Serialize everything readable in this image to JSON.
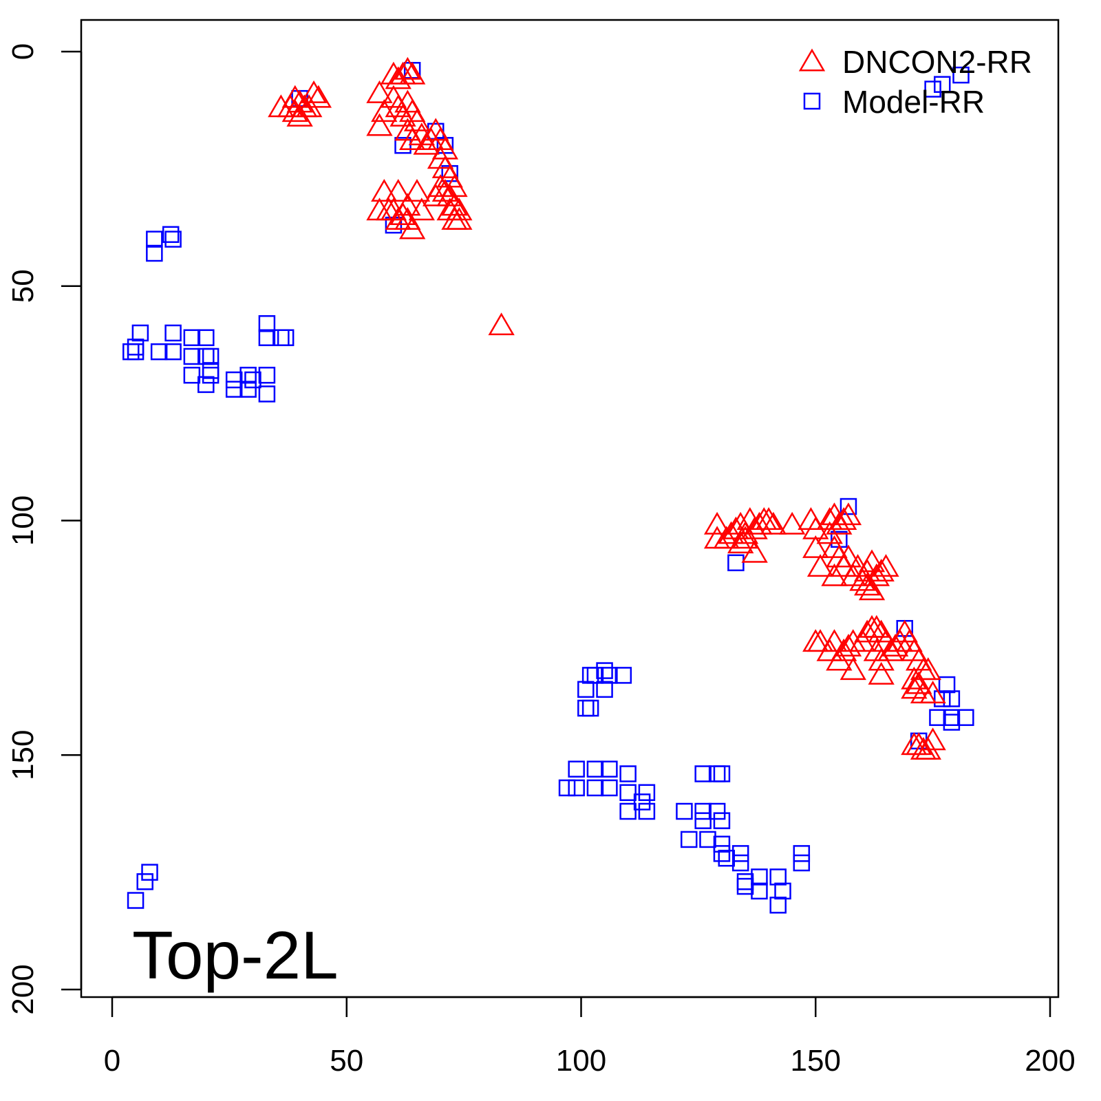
{
  "chart_data": {
    "type": "scatter",
    "title": "",
    "annotation": "Top-2L",
    "xlabel": "",
    "ylabel": "",
    "xlim": [
      0,
      200
    ],
    "ylim": [
      0,
      200
    ],
    "y_inverted": true,
    "xticks": [
      "0",
      "50",
      "100",
      "150",
      "200"
    ],
    "yticks": [
      "0",
      "50",
      "100",
      "150",
      "200"
    ],
    "grid": false,
    "legend_position": "top-right",
    "series": [
      {
        "name": "DNCON2-RR",
        "marker": "triangle",
        "color": "#ff0000",
        "points": [
          [
            36,
            12
          ],
          [
            39,
            10
          ],
          [
            40,
            11
          ],
          [
            41,
            12
          ],
          [
            42,
            12
          ],
          [
            43,
            9
          ],
          [
            44,
            10
          ],
          [
            40,
            14
          ],
          [
            39,
            13
          ],
          [
            38,
            12
          ],
          [
            60,
            5
          ],
          [
            61,
            6
          ],
          [
            62,
            5
          ],
          [
            63,
            4
          ],
          [
            64,
            5
          ],
          [
            57,
            9
          ],
          [
            58,
            13
          ],
          [
            57,
            16
          ],
          [
            60,
            10
          ],
          [
            61,
            12
          ],
          [
            62,
            14
          ],
          [
            63,
            11
          ],
          [
            64,
            13
          ],
          [
            65,
            15
          ],
          [
            63,
            17
          ],
          [
            64,
            19
          ],
          [
            66,
            18
          ],
          [
            67,
            20
          ],
          [
            68,
            19
          ],
          [
            69,
            17
          ],
          [
            70,
            19
          ],
          [
            71,
            21
          ],
          [
            70,
            23
          ],
          [
            71,
            25
          ],
          [
            72,
            27
          ],
          [
            73,
            29
          ],
          [
            72,
            31
          ],
          [
            73,
            33
          ],
          [
            74,
            34
          ],
          [
            71,
            30
          ],
          [
            70,
            29
          ],
          [
            69,
            31
          ],
          [
            72,
            34
          ],
          [
            73,
            36
          ],
          [
            74,
            36
          ],
          [
            57,
            34
          ],
          [
            58,
            30
          ],
          [
            61,
            30
          ],
          [
            60,
            34
          ],
          [
            61,
            36
          ],
          [
            62,
            35
          ],
          [
            63,
            33
          ],
          [
            64,
            38
          ],
          [
            65,
            30
          ],
          [
            66,
            34
          ],
          [
            63,
            36
          ],
          [
            59,
            34
          ],
          [
            83,
            58.5
          ],
          [
            129,
            101
          ],
          [
            129,
            104
          ],
          [
            131,
            104
          ],
          [
            132,
            103
          ],
          [
            133,
            102
          ],
          [
            134,
            101
          ],
          [
            135,
            103
          ],
          [
            136,
            100
          ],
          [
            137,
            102
          ],
          [
            138,
            101
          ],
          [
            139,
            100
          ],
          [
            140,
            100
          ],
          [
            141,
            101
          ],
          [
            134,
            105
          ],
          [
            137,
            107
          ],
          [
            135,
            104
          ],
          [
            145,
            101
          ],
          [
            149,
            100
          ],
          [
            150,
            102
          ],
          [
            150,
            106
          ],
          [
            151,
            110
          ],
          [
            153,
            100
          ],
          [
            154,
            99
          ],
          [
            155,
            101
          ],
          [
            156,
            100
          ],
          [
            157,
            99
          ],
          [
            153,
            103
          ],
          [
            154,
            106
          ],
          [
            155,
            108
          ],
          [
            154,
            112
          ],
          [
            156,
            110
          ],
          [
            157,
            108
          ],
          [
            158,
            112
          ],
          [
            159,
            110
          ],
          [
            160,
            113
          ],
          [
            161,
            111
          ],
          [
            162,
            109
          ],
          [
            163,
            112
          ],
          [
            164,
            111
          ],
          [
            165,
            110
          ],
          [
            161,
            114
          ],
          [
            162,
            115
          ],
          [
            150,
            126
          ],
          [
            151,
            126
          ],
          [
            153,
            128
          ],
          [
            154,
            126
          ],
          [
            156,
            128
          ],
          [
            155,
            130
          ],
          [
            157,
            127
          ],
          [
            158,
            126
          ],
          [
            160,
            126
          ],
          [
            161,
            124
          ],
          [
            162,
            123
          ],
          [
            163,
            123
          ],
          [
            164,
            124
          ],
          [
            165,
            126
          ],
          [
            163,
            128
          ],
          [
            164,
            130
          ],
          [
            166,
            128
          ],
          [
            167,
            127
          ],
          [
            168,
            126
          ],
          [
            169,
            124
          ],
          [
            170,
            126
          ],
          [
            171,
            128
          ],
          [
            172,
            130
          ],
          [
            173,
            132
          ],
          [
            174,
            132
          ],
          [
            171,
            134
          ],
          [
            172,
            135
          ],
          [
            158,
            132
          ],
          [
            164,
            133
          ],
          [
            171,
            136
          ],
          [
            173,
            137
          ],
          [
            175,
            137
          ],
          [
            171,
            148
          ],
          [
            172,
            148
          ],
          [
            173,
            149
          ],
          [
            174,
            149
          ],
          [
            175,
            147
          ]
        ]
      },
      {
        "name": "Model-RR",
        "marker": "square",
        "color": "#0000ff",
        "points": [
          [
            5,
            181
          ],
          [
            7,
            177
          ],
          [
            8,
            175
          ],
          [
            9,
            40
          ],
          [
            9,
            43
          ],
          [
            12.5,
            39
          ],
          [
            13,
            40
          ],
          [
            4,
            64
          ],
          [
            5,
            63
          ],
          [
            6,
            60
          ],
          [
            5,
            64
          ],
          [
            10,
            64
          ],
          [
            13,
            60
          ],
          [
            13,
            64
          ],
          [
            17,
            61
          ],
          [
            17,
            65
          ],
          [
            17,
            69
          ],
          [
            20,
            61
          ],
          [
            20,
            65
          ],
          [
            20,
            71
          ],
          [
            21,
            65
          ],
          [
            21,
            68
          ],
          [
            21,
            69
          ],
          [
            26,
            70
          ],
          [
            26,
            72
          ],
          [
            29,
            69
          ],
          [
            29,
            72
          ],
          [
            30,
            70
          ],
          [
            33,
            69
          ],
          [
            33,
            73
          ],
          [
            33,
            58
          ],
          [
            33,
            61
          ],
          [
            36,
            61
          ],
          [
            37,
            61
          ],
          [
            175,
            8
          ],
          [
            177,
            7
          ],
          [
            181,
            5
          ],
          [
            101,
            136
          ],
          [
            102,
            133
          ],
          [
            101,
            140
          ],
          [
            102,
            140
          ],
          [
            103,
            133
          ],
          [
            105,
            136
          ],
          [
            105,
            132
          ],
          [
            106,
            133
          ],
          [
            109,
            133
          ],
          [
            97,
            157
          ],
          [
            99,
            157
          ],
          [
            99,
            153
          ],
          [
            103,
            153
          ],
          [
            103,
            157
          ],
          [
            106,
            153
          ],
          [
            106,
            157
          ],
          [
            110,
            154
          ],
          [
            110,
            158
          ],
          [
            110,
            162
          ],
          [
            114,
            158
          ],
          [
            114,
            162
          ],
          [
            113,
            160
          ],
          [
            122,
            162
          ],
          [
            123,
            168
          ],
          [
            126,
            162
          ],
          [
            126,
            164
          ],
          [
            126,
            154
          ],
          [
            129,
            154
          ],
          [
            130,
            154
          ],
          [
            129,
            162
          ],
          [
            130,
            164
          ],
          [
            127,
            168
          ],
          [
            130,
            169
          ],
          [
            130,
            171
          ],
          [
            131,
            172
          ],
          [
            134,
            171
          ],
          [
            134,
            173
          ],
          [
            135,
            177
          ],
          [
            135,
            178
          ],
          [
            138,
            176
          ],
          [
            138,
            179
          ],
          [
            142,
            176
          ],
          [
            142,
            182
          ],
          [
            143,
            179
          ],
          [
            147,
            171
          ],
          [
            147,
            173
          ],
          [
            178,
            135
          ],
          [
            177,
            138
          ],
          [
            179,
            138
          ],
          [
            176,
            142
          ],
          [
            179,
            142
          ],
          [
            182,
            142
          ],
          [
            179,
            143
          ],
          [
            64,
            4
          ],
          [
            60,
            37
          ],
          [
            69,
            17
          ],
          [
            71,
            20
          ],
          [
            72,
            26
          ],
          [
            157,
            97
          ],
          [
            133,
            109
          ],
          [
            169,
            123
          ],
          [
            172,
            147
          ],
          [
            40,
            10
          ],
          [
            62,
            20
          ],
          [
            155,
            104
          ]
        ]
      }
    ]
  }
}
